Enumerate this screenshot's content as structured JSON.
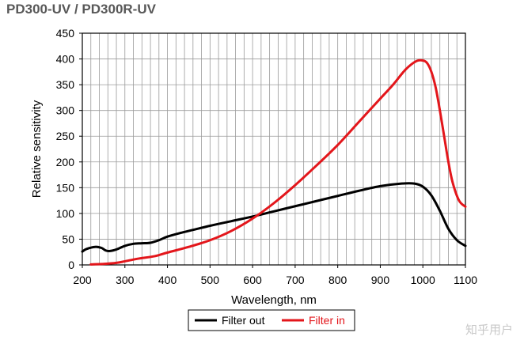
{
  "chart_data": {
    "type": "line",
    "title": "PD300-UV / PD300R-UV",
    "xlabel": "Wavelength, nm",
    "ylabel": "Relative sensitivity",
    "xlim": [
      200,
      1100
    ],
    "ylim": [
      0,
      450
    ],
    "xticks": [
      200,
      300,
      400,
      500,
      600,
      700,
      800,
      900,
      1000,
      1100
    ],
    "yticks": [
      0,
      50,
      100,
      150,
      200,
      250,
      300,
      350,
      400,
      450
    ],
    "x_minor_step": 20,
    "grid": true,
    "legend_position": "bottom-center",
    "series": [
      {
        "name": "Filter out",
        "color": "#000000",
        "x": [
          200,
          210,
          230,
          245,
          255,
          265,
          280,
          300,
          320,
          340,
          360,
          380,
          400,
          430,
          460,
          500,
          550,
          600,
          650,
          700,
          750,
          800,
          850,
          900,
          950,
          980,
          1000,
          1020,
          1040,
          1060,
          1080,
          1100
        ],
        "y": [
          26,
          31,
          35,
          33,
          28,
          27,
          30,
          37,
          41,
          42,
          43,
          48,
          55,
          62,
          68,
          76,
          85,
          94,
          104,
          114,
          124,
          134,
          144,
          153,
          158,
          158,
          152,
          135,
          105,
          70,
          48,
          37
        ]
      },
      {
        "name": "Filter in",
        "color": "#e3161b",
        "x": [
          220,
          250,
          280,
          300,
          330,
          370,
          400,
          450,
          500,
          550,
          600,
          650,
          700,
          750,
          800,
          850,
          900,
          930,
          960,
          985,
          1000,
          1010,
          1020,
          1030,
          1040,
          1050,
          1060,
          1070,
          1085,
          1100
        ],
        "y": [
          1,
          2,
          4,
          7,
          12,
          17,
          24,
          35,
          48,
          66,
          90,
          120,
          155,
          193,
          233,
          278,
          323,
          350,
          380,
          396,
          397,
          392,
          375,
          345,
          300,
          250,
          200,
          160,
          125,
          113
        ]
      }
    ]
  },
  "watermark": "知乎用户"
}
